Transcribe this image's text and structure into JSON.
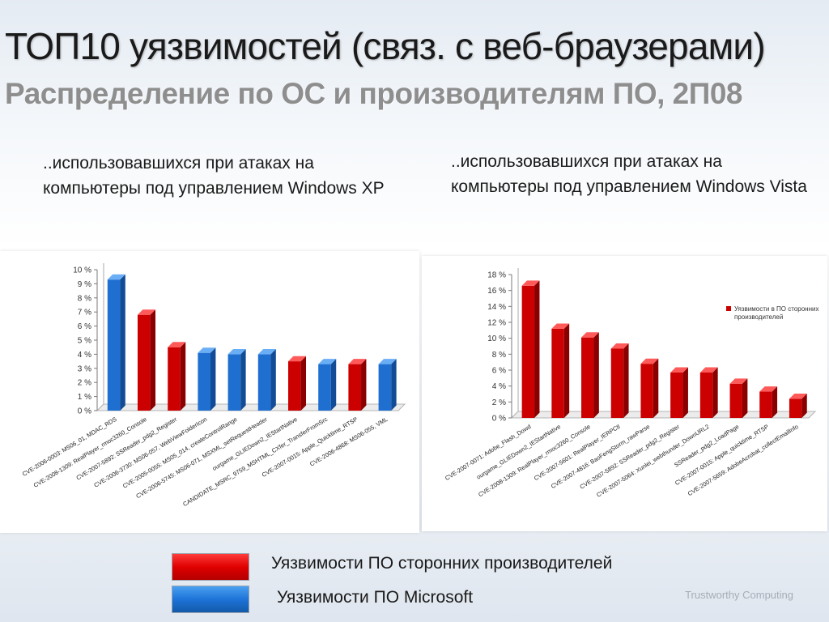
{
  "slide": {
    "title": "ТОП10 уязвимостей (связ. с веб-браузерами)",
    "subtitle": "Распределение по ОС и производителям ПО, 2П08",
    "caption_left": "..использовавшихся при атаках на компьютеры под управлением Windows XP",
    "caption_right": "..использовавшихся при атаках на компьютеры под управлением Windows Vista",
    "legend": {
      "third_party_label": "Уязвимости ПО сторонних производителей",
      "microsoft_label": "Уязвимости ПО Microsoft",
      "third_party_color": "#d40000",
      "microsoft_color": "#1e73d8"
    },
    "footer_brand": "Trustworthy Computing"
  },
  "chart_data": [
    {
      "type": "bar",
      "title": "",
      "xlabel": "",
      "ylabel": "",
      "ylim": [
        0,
        10
      ],
      "y_ticks": [
        "0 %",
        "1 %",
        "2 %",
        "3 %",
        "4 %",
        "5 %",
        "6 %",
        "7 %",
        "8 %",
        "9 %",
        "10 %"
      ],
      "grid": false,
      "categories": [
        "CVE-2006-0003: MS06_01, MDAC_RDS",
        "CVE-2008-1309: RealPlayer_rmoc3260_Console",
        "CVE-2007-5892: SSReader_pdg2_Register",
        "CVE-2006-3730: MS06-057, WebViewFolderIcon",
        "CVE-2005-0055: MS05_014, createControlRange",
        "CVE-2006-5745: MS06-071, MSXML_setRequestHeader",
        "ourgame_GLIEDown2_IEStartNative",
        "CANDIDATE_MSRC_9759_MSHTML_CXfer_TransferFromSrc",
        "CVE-2007-0015: Apple_Quicktime_RTSP",
        "CVE-2006-4868: MS06-055, VML"
      ],
      "values": [
        9.3,
        6.8,
        4.5,
        4.1,
        4.0,
        4.0,
        3.5,
        3.3,
        3.3,
        3.3
      ],
      "vendor": [
        "microsoft",
        "third_party",
        "third_party",
        "microsoft",
        "microsoft",
        "microsoft",
        "third_party",
        "microsoft",
        "third_party",
        "microsoft"
      ]
    },
    {
      "type": "bar",
      "title": "",
      "xlabel": "",
      "ylabel": "",
      "ylim": [
        0,
        18
      ],
      "y_ticks": [
        "0 %",
        "2 %",
        "4 %",
        "6 %",
        "8 %",
        "10 %",
        "12 %",
        "14 %",
        "16 %",
        "18 %"
      ],
      "grid": false,
      "legend_entries": [
        "Уязвимости в ПО сторонних производителей"
      ],
      "legend_position": "right",
      "categories": [
        "CVE-2007-0071: Adobe_Flash_Dowd",
        "ourgame_GLIEDown2_IEStartNative",
        "CVE-2008-1309: RealPlayer_rmoc3260_Console",
        "CVE-2007-5601: RealPlayer_IERPCtl",
        "CVE-2007-4816: BaoFengStorm_rawParse",
        "CVE-2007-5892: SSReader_pdg2_Register",
        "CVE-2007-5064: Xunlei_webthunder_DownURL2",
        "SSReader_pdg2_LoadPage",
        "CVE-2007-0015: Apple_quicktime_RTSP",
        "CVE-2007-5659: AdobeAcrobat_collectEmailInfo"
      ],
      "values": [
        16.6,
        11.2,
        10.1,
        8.7,
        6.8,
        5.7,
        5.7,
        4.3,
        3.3,
        2.4
      ],
      "vendor": [
        "third_party",
        "third_party",
        "third_party",
        "third_party",
        "third_party",
        "third_party",
        "third_party",
        "third_party",
        "third_party",
        "third_party"
      ]
    }
  ]
}
